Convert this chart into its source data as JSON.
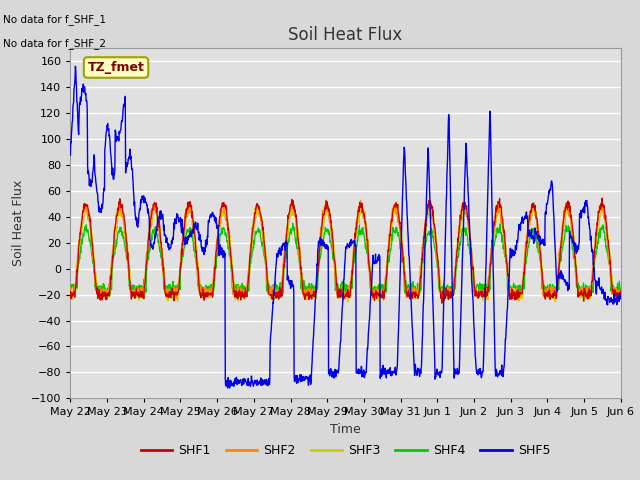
{
  "title": "Soil Heat Flux",
  "ylabel": "Soil Heat Flux",
  "xlabel": "Time",
  "ylim": [
    -100,
    170
  ],
  "yticks": [
    -100,
    -80,
    -60,
    -40,
    -20,
    0,
    20,
    40,
    60,
    80,
    100,
    120,
    140,
    160
  ],
  "bg_color": "#d8d8d8",
  "plot_bg_color": "#e0e0e0",
  "grid_color": "#ffffff",
  "no_data_text1": "No data for f_SHF_1",
  "no_data_text2": "No data for f_SHF_2",
  "legend_label": "TZ_fmet",
  "legend_bg": "#ffffc0",
  "legend_border": "#a0a000",
  "legend_text_color": "#800000",
  "series_colors": {
    "SHF1": "#cc0000",
    "SHF2": "#ff8800",
    "SHF3": "#cccc00",
    "SHF4": "#00cc00",
    "SHF5": "#0000ee"
  },
  "xtick_labels": [
    "May 22",
    "May 23",
    "May 24",
    "May 25",
    "May 26",
    "May 27",
    "May 28",
    "May 29",
    "May 30",
    "May 31",
    "Jun 1",
    "Jun 2",
    "Jun 3",
    "Jun 4",
    "Jun 5",
    "Jun 6"
  ],
  "n_days": 16,
  "figwidth": 6.4,
  "figheight": 4.8,
  "dpi": 100
}
